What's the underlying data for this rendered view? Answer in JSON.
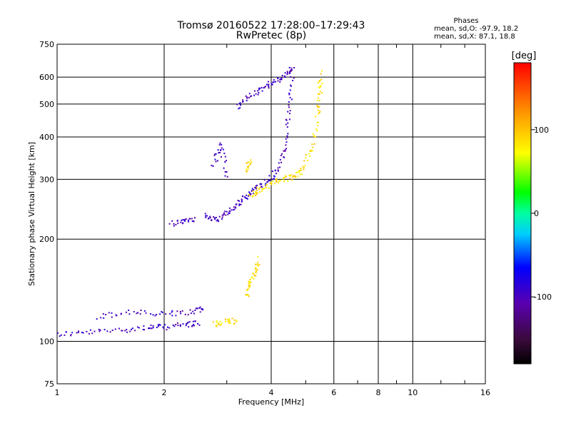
{
  "chart_data": {
    "type": "scatter",
    "title": "Tromsø 20160522 17:28:00–17:29:43",
    "subtitle": "RwPretec (8p)",
    "xlabel": "Frequency [MHz]",
    "ylabel": "Stationary phase Virtual Height [km]",
    "x_scale": "log",
    "y_scale": "log",
    "xlim": [
      1,
      16
    ],
    "ylim": [
      75,
      750
    ],
    "x_ticks": [
      1,
      2,
      4,
      6,
      8,
      10,
      16
    ],
    "x_tick_labels": [
      "1",
      "2",
      "4",
      "6",
      "8",
      "10",
      "16"
    ],
    "y_ticks": [
      75,
      100,
      200,
      300,
      400,
      500,
      600,
      750
    ],
    "y_tick_labels": [
      "75",
      "100",
      "200",
      "300",
      "400",
      "500",
      "600",
      "750"
    ],
    "grid": true,
    "phases_box": {
      "title": "Phases",
      "line1": "mean, sd,O: -97.9, 18.2",
      "line2": "mean, sd,X:  87.1, 18.8"
    },
    "colorbar": {
      "label": "[deg]",
      "ticks": [
        100,
        0,
        -100
      ],
      "tick_labels": [
        "100",
        "0",
        "-100"
      ],
      "range": [
        -180,
        180
      ]
    },
    "colors": {
      "grid": "#000000",
      "background": "#ffffff"
    },
    "series": [
      {
        "mode": "O",
        "phase_mean": -97.9,
        "phase_sd": 18.2,
        "approx_traces": [
          {
            "x": [
              1.0,
              1.2,
              1.5,
              1.8,
              2.0,
              2.3,
              2.5
            ],
            "y": [
              105,
              106,
              108,
              110,
              110,
              112,
              113
            ]
          },
          {
            "x": [
              1.3,
              1.6,
              2.0,
              2.4,
              2.6
            ],
            "y": [
              118,
              122,
              120,
              122,
              125
            ]
          },
          {
            "x": [
              2.6,
              2.8,
              3.0,
              3.2,
              3.4,
              3.6,
              3.9,
              4.2,
              4.4,
              4.5,
              4.6
            ],
            "y": [
              235,
              228,
              238,
              252,
              268,
              282,
              295,
              320,
              380,
              480,
              610
            ]
          },
          {
            "x": [
              3.2,
              3.5,
              3.8,
              4.1,
              4.4,
              4.6
            ],
            "y": [
              490,
              530,
              560,
              580,
              610,
              640
            ]
          },
          {
            "x": [
              2.1,
              2.3,
              2.45
            ],
            "y": [
              222,
              228,
              230
            ]
          },
          {
            "x": [
              2.75,
              2.9,
              3.0
            ],
            "y": [
              330,
              380,
              300
            ]
          }
        ]
      },
      {
        "mode": "X",
        "phase_mean": 87.1,
        "phase_sd": 18.8,
        "approx_traces": [
          {
            "x": [
              2.75,
              3.0,
              3.2
            ],
            "y": [
              112,
              114,
              115
            ]
          },
          {
            "x": [
              3.4,
              3.5,
              3.6,
              3.7
            ],
            "y": [
              135,
              150,
              160,
              175
            ]
          },
          {
            "x": [
              3.5,
              3.7,
              4.0,
              4.3,
              4.6,
              4.9,
              5.2,
              5.4,
              5.5,
              5.5
            ],
            "y": [
              270,
              278,
              290,
              300,
              305,
              320,
              370,
              460,
              540,
              620
            ]
          },
          {
            "x": [
              3.4,
              3.5
            ],
            "y": [
              320,
              340
            ]
          }
        ]
      }
    ]
  }
}
